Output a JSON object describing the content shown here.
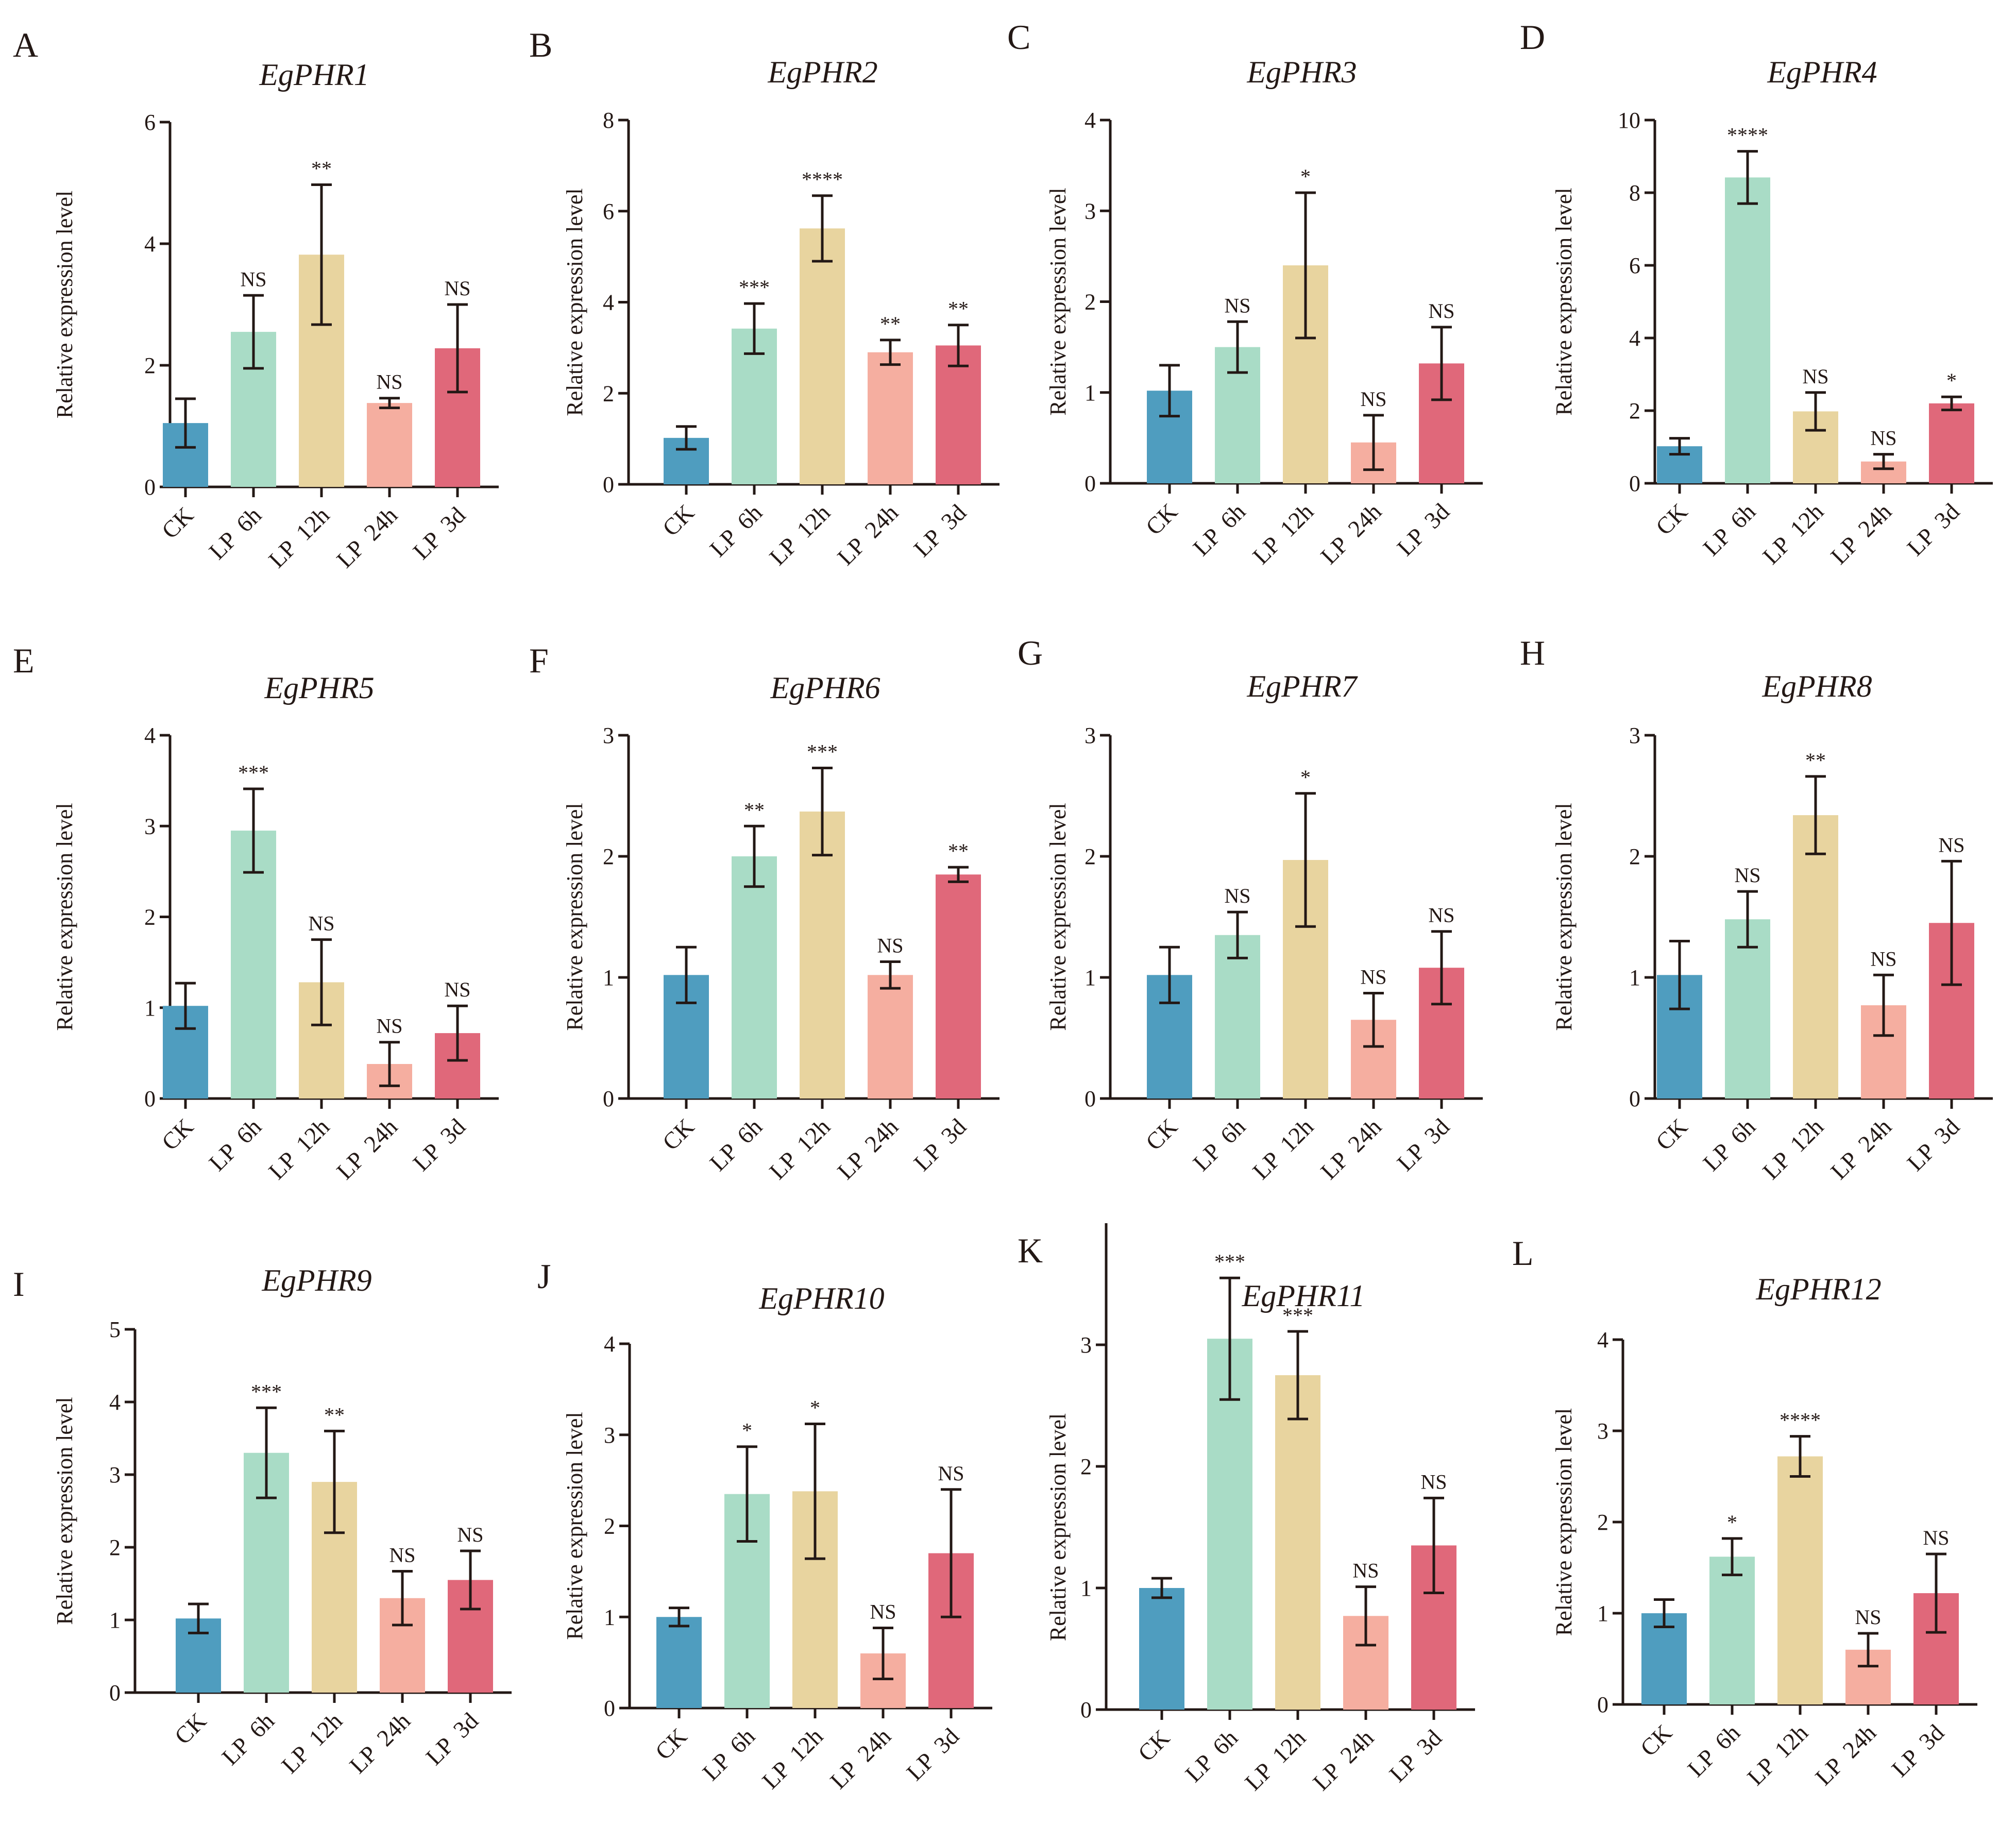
{
  "colors": {
    "ck": "#4f9dbf",
    "lp6h": "#a9dcc6",
    "lp12h": "#e8d49f",
    "lp24h": "#f5aea0",
    "lp3d": "#e0687a",
    "axis": "#231815"
  },
  "shared": {
    "ylabel": "Relative expression level",
    "categories": [
      "CK",
      "LP  6h",
      "LP  12h",
      "LP  24h",
      "LP  3d"
    ]
  },
  "chart_data": [
    {
      "panel": "A",
      "type": "bar",
      "title": "EgPHR1",
      "ylabel": "Relative expression level",
      "categories": [
        "CK",
        "LP  6h",
        "LP  12h",
        "LP  24h",
        "LP  3d"
      ],
      "values": [
        1.05,
        2.55,
        3.82,
        1.38,
        2.28
      ],
      "errors": [
        0.4,
        0.6,
        1.15,
        0.08,
        0.72
      ],
      "significance": [
        "",
        "NS",
        "**",
        "NS",
        "NS"
      ],
      "yticks": [
        0,
        2,
        4,
        6
      ],
      "ylim": [
        0,
        6
      ]
    },
    {
      "panel": "B",
      "type": "bar",
      "title": "EgPHR2",
      "ylabel": "Relative expression level",
      "categories": [
        "CK",
        "LP  6h",
        "LP  12h",
        "LP  24h",
        "LP  3d"
      ],
      "values": [
        1.02,
        3.42,
        5.62,
        2.9,
        3.05
      ],
      "errors": [
        0.25,
        0.55,
        0.72,
        0.27,
        0.45
      ],
      "significance": [
        "",
        "***",
        "****",
        "**",
        "**"
      ],
      "yticks": [
        0,
        2,
        4,
        6,
        8
      ],
      "ylim": [
        0,
        8
      ]
    },
    {
      "panel": "C",
      "type": "bar",
      "title": "EgPHR3",
      "ylabel": "Relative expression level",
      "categories": [
        "CK",
        "LP  6h",
        "LP  12h",
        "LP  24h",
        "LP  3d"
      ],
      "values": [
        1.02,
        1.5,
        2.4,
        0.45,
        1.32
      ],
      "errors": [
        0.28,
        0.28,
        0.8,
        0.3,
        0.4
      ],
      "significance": [
        "",
        "NS",
        "*",
        "NS",
        "NS"
      ],
      "yticks": [
        0,
        1,
        2,
        3,
        4
      ],
      "ylim": [
        0,
        4
      ]
    },
    {
      "panel": "D",
      "type": "bar",
      "title": "EgPHR4",
      "ylabel": "Relative expression level",
      "categories": [
        "CK",
        "LP  6h",
        "LP  12h",
        "LP  24h",
        "LP  3d"
      ],
      "values": [
        1.02,
        8.42,
        1.98,
        0.6,
        2.2
      ],
      "errors": [
        0.22,
        0.72,
        0.52,
        0.2,
        0.18
      ],
      "significance": [
        "",
        "****",
        "NS",
        "NS",
        "*"
      ],
      "yticks": [
        0,
        2,
        4,
        6,
        8,
        10
      ],
      "ylim": [
        0,
        10
      ]
    },
    {
      "panel": "E",
      "type": "bar",
      "title": "EgPHR5",
      "ylabel": "Relative expression level",
      "categories": [
        "CK",
        "LP  6h",
        "LP  12h",
        "LP  24h",
        "LP  3d"
      ],
      "values": [
        1.02,
        2.95,
        1.28,
        0.38,
        0.72
      ],
      "errors": [
        0.25,
        0.46,
        0.47,
        0.24,
        0.3
      ],
      "significance": [
        "",
        "***",
        "NS",
        "NS",
        "NS"
      ],
      "yticks": [
        0,
        1,
        2,
        3,
        4
      ],
      "ylim": [
        0,
        4
      ]
    },
    {
      "panel": "F",
      "type": "bar",
      "title": "EgPHR6",
      "ylabel": "Relative expression level",
      "categories": [
        "CK",
        "LP  6h",
        "LP  12h",
        "LP  24h",
        "LP  3d"
      ],
      "values": [
        1.02,
        2.0,
        2.37,
        1.02,
        1.85
      ],
      "errors": [
        0.23,
        0.25,
        0.36,
        0.11,
        0.06
      ],
      "significance": [
        "",
        "**",
        "***",
        "NS",
        "**"
      ],
      "yticks": [
        0,
        1,
        2,
        3
      ],
      "ylim": [
        0,
        3
      ]
    },
    {
      "panel": "G",
      "type": "bar",
      "title": "EgPHR7",
      "ylabel": "Relative expression level",
      "categories": [
        "CK",
        "LP  6h",
        "LP  12h",
        "LP  24h",
        "LP  3d"
      ],
      "values": [
        1.02,
        1.35,
        1.97,
        0.65,
        1.08
      ],
      "errors": [
        0.23,
        0.19,
        0.55,
        0.22,
        0.3
      ],
      "significance": [
        "",
        "NS",
        "*",
        "NS",
        "NS"
      ],
      "yticks": [
        0,
        1,
        2,
        3
      ],
      "ylim": [
        0,
        3
      ]
    },
    {
      "panel": "H",
      "type": "bar",
      "title": "EgPHR8",
      "ylabel": "Relative expression level",
      "categories": [
        "CK",
        "LP  6h",
        "LP  12h",
        "LP  24h",
        "LP  3d"
      ],
      "values": [
        1.02,
        1.48,
        2.34,
        0.77,
        1.45
      ],
      "errors": [
        0.28,
        0.23,
        0.32,
        0.25,
        0.51
      ],
      "significance": [
        "",
        "NS",
        "**",
        "NS",
        "NS"
      ],
      "yticks": [
        0,
        1,
        2,
        3
      ],
      "ylim": [
        0,
        3
      ]
    },
    {
      "panel": "I",
      "type": "bar",
      "title": "EgPHR9",
      "ylabel": "Relative expression level",
      "categories": [
        "CK",
        "LP  6h",
        "LP  12h",
        "LP  24h",
        "LP  3d"
      ],
      "values": [
        1.02,
        3.3,
        2.9,
        1.3,
        1.55
      ],
      "errors": [
        0.2,
        0.62,
        0.7,
        0.37,
        0.4
      ],
      "significance": [
        "",
        "***",
        "**",
        "NS",
        "NS"
      ],
      "yticks": [
        0,
        1,
        2,
        3,
        4,
        5
      ],
      "ylim": [
        0,
        5
      ]
    },
    {
      "panel": "J",
      "type": "bar",
      "title": "EgPHR10",
      "ylabel": "Relative expression level",
      "categories": [
        "CK",
        "LP  6h",
        "LP  12h",
        "LP  24h",
        "LP  3d"
      ],
      "values": [
        1.0,
        2.35,
        2.38,
        0.6,
        1.7
      ],
      "errors": [
        0.1,
        0.52,
        0.74,
        0.28,
        0.7
      ],
      "significance": [
        "",
        "*",
        "*",
        "NS",
        "NS"
      ],
      "yticks": [
        0,
        1,
        2,
        3,
        4
      ],
      "ylim": [
        0,
        4
      ]
    },
    {
      "panel": "K",
      "type": "bar",
      "title": "EgPHR11",
      "ylabel": "Relative expression level",
      "categories": [
        "CK",
        "LP  6h",
        "LP  12h",
        "LP  24h",
        "LP  3d"
      ],
      "values": [
        1.0,
        3.05,
        2.75,
        0.77,
        1.35
      ],
      "errors": [
        0.08,
        0.5,
        0.36,
        0.24,
        0.39
      ],
      "significance": [
        "",
        "***",
        "***",
        "NS",
        "NS"
      ],
      "yticks": [
        0,
        1,
        2,
        3
      ],
      "ylim": [
        0,
        4
      ]
    },
    {
      "panel": "L",
      "type": "bar",
      "title": "EgPHR12",
      "ylabel": "Relative expression level",
      "categories": [
        "CK",
        "LP  6h",
        "LP  12h",
        "LP  24h",
        "LP  3d"
      ],
      "values": [
        1.0,
        1.62,
        2.72,
        0.6,
        1.22
      ],
      "errors": [
        0.15,
        0.2,
        0.22,
        0.18,
        0.43
      ],
      "significance": [
        "",
        "*",
        "****",
        "NS",
        "NS"
      ],
      "yticks": [
        0,
        1,
        2,
        3,
        4
      ],
      "ylim": [
        0,
        4
      ]
    }
  ]
}
